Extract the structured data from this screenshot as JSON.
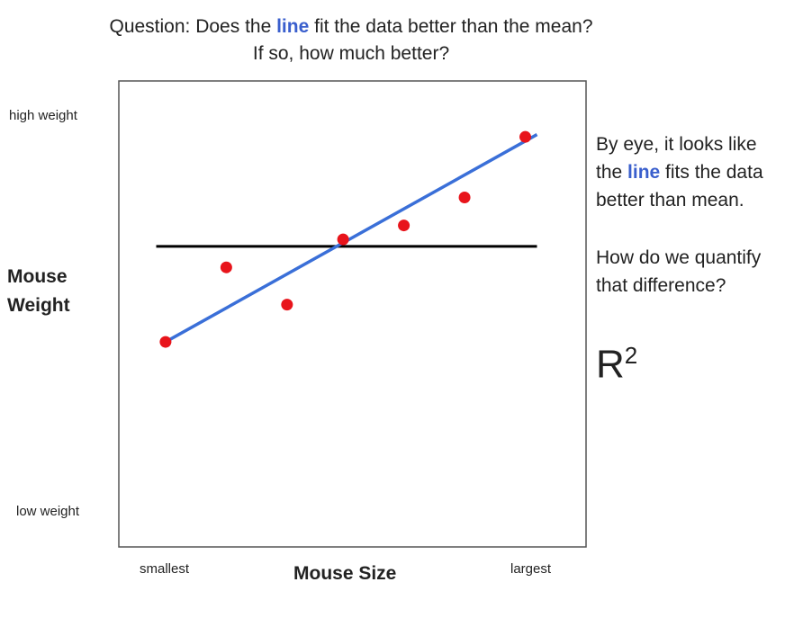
{
  "header": {
    "q_prefix": "Question:  Does the ",
    "q_line": "line",
    "q_suffix": " fit the data better than the mean?",
    "q_line2": "If so, how much better?"
  },
  "note1": {
    "line1": "By eye, it looks like",
    "line2_prefix": "the ",
    "line2_hl": "line",
    "line2_suffix": " fits the data",
    "line3": "better than mean."
  },
  "note2": {
    "line1": "How do we quantify",
    "line2": "that difference?"
  },
  "r2": {
    "base": "R",
    "sup": "2"
  },
  "colors": {
    "points": "#e8141b",
    "fit_line": "#3a6fd8",
    "mean_line": "#000000",
    "highlight": "#3a5fcd"
  },
  "chart_data": {
    "type": "scatter",
    "xlabel": "Mouse Size",
    "ylabel": "Mouse Weight",
    "x_ticks": [
      "smallest",
      "largest"
    ],
    "y_ticks": [
      "high weight",
      "low weight"
    ],
    "xlim": [
      0,
      10
    ],
    "ylim": [
      0,
      10
    ],
    "points": [
      {
        "x": 1.0,
        "y": 4.4
      },
      {
        "x": 2.3,
        "y": 6.0
      },
      {
        "x": 3.6,
        "y": 5.2
      },
      {
        "x": 4.8,
        "y": 6.6
      },
      {
        "x": 6.1,
        "y": 6.9
      },
      {
        "x": 7.4,
        "y": 7.5
      },
      {
        "x": 8.7,
        "y": 8.8
      }
    ],
    "fit_line": {
      "x": [
        1.0,
        8.95
      ],
      "y": [
        4.4,
        8.85
      ]
    },
    "mean_line": {
      "x": [
        0.8,
        8.95
      ],
      "y": 6.45
    },
    "grid": false,
    "legend": "none"
  }
}
